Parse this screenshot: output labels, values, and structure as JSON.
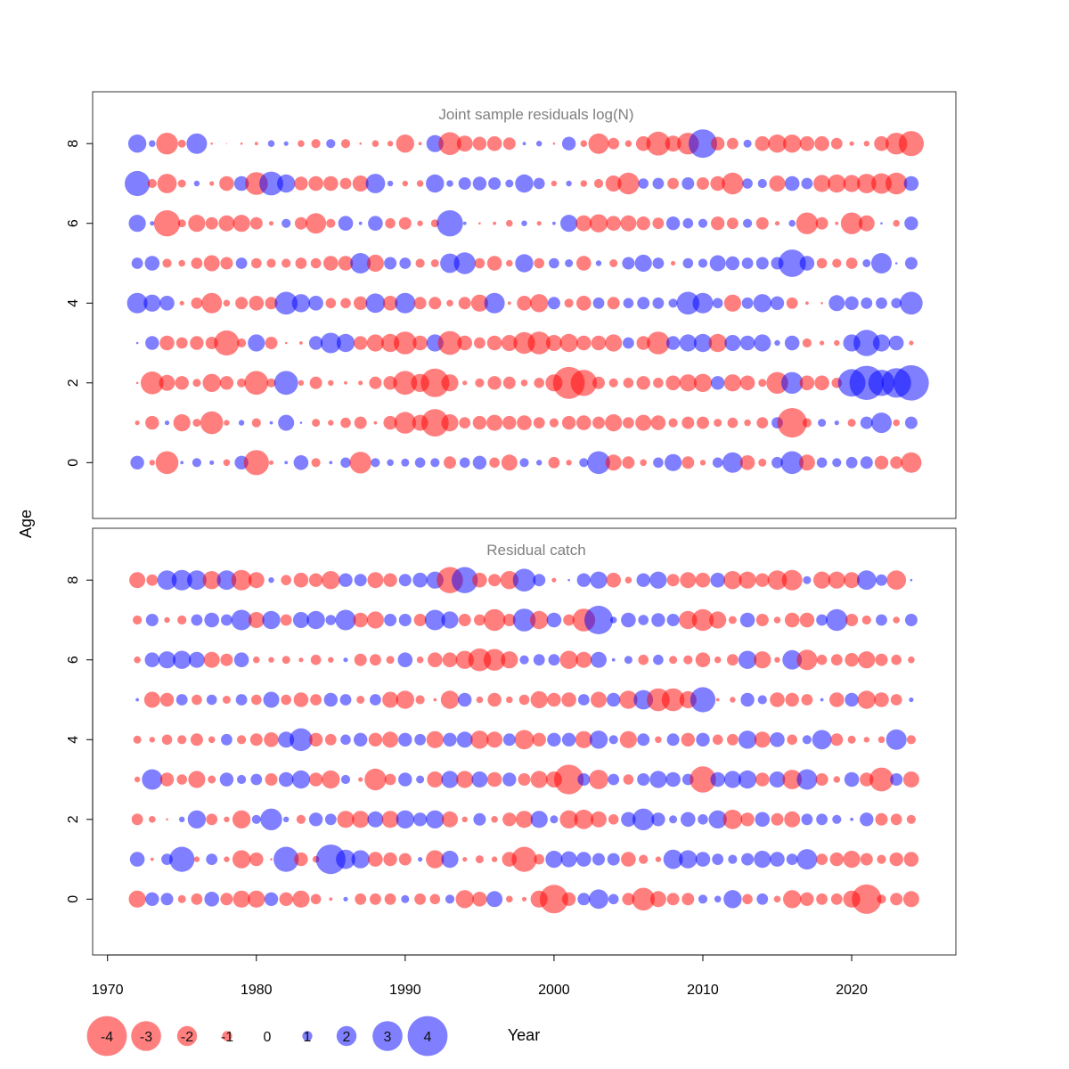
{
  "chart_data": {
    "type": "scatter",
    "subtype": "bubble",
    "xlabel": "Year",
    "ylabel": "Age",
    "xlim": [
      1969,
      2027
    ],
    "ylim": [
      -1.4,
      9.3
    ],
    "x_ticks": [
      1970,
      1980,
      1990,
      2000,
      2010,
      2020
    ],
    "y_ticks": [
      0,
      2,
      4,
      6,
      8
    ],
    "colors": {
      "negative": "#ff0000",
      "positive": "#0000ff",
      "opacity": 0.5
    },
    "years_start": 1972,
    "years_end": 2024,
    "legend": {
      "values": [
        -4,
        -3,
        -2,
        -1,
        0,
        1,
        2,
        3,
        4
      ],
      "labels": [
        "-4",
        "-3",
        "-2",
        "-1",
        "0",
        "1",
        "2",
        "3",
        "4"
      ]
    },
    "panels": [
      {
        "title": "Joint sample residuals log(N)",
        "ages": [
          0,
          1,
          2,
          3,
          4,
          5,
          6,
          7,
          8
        ],
        "residuals": [
          [
            1.2,
            -0.5,
            -2.0,
            0.3,
            0.8,
            0.4,
            -0.6,
            1.2,
            -2.2,
            -0.4,
            0.3,
            1.3,
            -0.8,
            0.3,
            0.9,
            -1.9,
            0.8,
            0.6,
            0.7,
            0.9,
            0.8,
            -1.1,
            0.9,
            1.2,
            -0.9,
            -1.4,
            0.8,
            0.5,
            -1.0,
            -0.5,
            0.8,
            2.0,
            -1.4,
            -1.1,
            -0.6,
            0.9,
            1.5,
            -1.1,
            -0.5,
            0.9,
            1.8,
            -1.3,
            -0.7,
            1.0,
            2.0,
            -1.4,
            0.9,
            0.8,
            1.0,
            1.1,
            -1.2,
            -1.1,
            -1.8
          ],
          [
            -0.4,
            -1.2,
            0.4,
            -1.5,
            -0.7,
            -2.0,
            -0.5,
            0.5,
            -0.8,
            0.3,
            1.4,
            0.2,
            -0.7,
            -0.5,
            -0.9,
            -1.1,
            -0.3,
            -1.2,
            -1.9,
            -1.4,
            -2.4,
            -1.5,
            -1.0,
            -1.2,
            -1.4,
            -1.2,
            -1.3,
            -1.0,
            -0.8,
            -1.2,
            -1.3,
            -1.1,
            -1.5,
            -1.0,
            -1.4,
            -1.3,
            -0.8,
            -1.1,
            -1.1,
            -0.7,
            -0.9,
            -0.6,
            -1.0,
            1.0,
            -2.6,
            -0.8,
            0.7,
            0.4,
            -0.7,
            1.1,
            1.8,
            -0.6,
            1.1
          ],
          [
            -0.2,
            -2.0,
            -1.4,
            -1.2,
            -0.7,
            -1.6,
            -1.2,
            -0.8,
            -2.1,
            -0.8,
            2.1,
            -0.5,
            -1.1,
            -0.5,
            -0.3,
            -0.4,
            -1.1,
            -1.2,
            -2.1,
            -1.6,
            -2.5,
            -1.5,
            -0.4,
            -0.8,
            -1.2,
            -1.1,
            -0.6,
            -0.9,
            -1.5,
            -2.8,
            -2.3,
            -1.1,
            -0.8,
            -0.9,
            -1.2,
            -0.9,
            -1.3,
            -1.5,
            -1.6,
            1.2,
            -1.5,
            -1.3,
            -0.7,
            -1.9,
            1.9,
            -1.3,
            -1.3,
            -0.9,
            2.4,
            3.0,
            2.3,
            2.6,
            3.1
          ],
          [
            0.2,
            1.2,
            -1.3,
            -1.0,
            -1.2,
            -1.1,
            -2.2,
            -0.8,
            1.5,
            -1.1,
            -0.2,
            -0.3,
            1.2,
            1.8,
            1.6,
            -1.2,
            -1.5,
            -1.6,
            -2.0,
            -1.3,
            1.5,
            -2.1,
            -1.3,
            -1.0,
            -1.3,
            -1.4,
            -1.9,
            -2.0,
            -1.4,
            -1.6,
            -1.3,
            -1.3,
            -1.5,
            1.0,
            -1.2,
            -2.0,
            1.2,
            1.5,
            1.6,
            -1.6,
            1.4,
            1.3,
            1.5,
            0.5,
            1.3,
            -0.8,
            -0.4,
            -0.5,
            1.5,
            2.3,
            1.5,
            1.3,
            -0.4
          ],
          [
            1.8,
            1.5,
            1.3,
            -0.4,
            -1.0,
            -1.8,
            -0.6,
            -1.1,
            -1.3,
            -1.1,
            2.0,
            1.6,
            1.3,
            -0.9,
            -0.9,
            -1.2,
            1.7,
            -1.3,
            1.8,
            -1.1,
            -1.1,
            -0.6,
            -1.1,
            -1.5,
            1.8,
            -0.3,
            -1.3,
            -1.6,
            1.1,
            -0.8,
            -1.3,
            1.0,
            -1.1,
            0.9,
            1.1,
            1.0,
            0.8,
            2.0,
            1.8,
            0.9,
            -1.5,
            1.0,
            1.6,
            1.2,
            -1.0,
            -0.3,
            -0.2,
            1.4,
            1.2,
            1.0,
            1.0,
            0.9,
            2.0
          ],
          [
            1.0,
            1.3,
            -0.8,
            -0.6,
            -1.0,
            -1.4,
            -1.1,
            1.0,
            -0.9,
            -0.8,
            -0.8,
            -1.0,
            -0.9,
            -1.3,
            -1.3,
            1.8,
            -1.5,
            1.1,
            1.0,
            -0.8,
            -0.7,
            1.7,
            1.9,
            -0.9,
            -1.3,
            -0.6,
            1.6,
            -0.9,
            0.9,
            0.7,
            -1.3,
            0.5,
            -0.7,
            1.1,
            1.5,
            1.0,
            -0.4,
            0.9,
            0.8,
            1.4,
            1.2,
            1.0,
            1.1,
            1.1,
            2.4,
            1.3,
            -0.9,
            -0.8,
            -1.0,
            0.7,
            1.8,
            0.2,
            1.1
          ],
          [
            1.5,
            0.4,
            -2.3,
            -0.7,
            -1.5,
            -1.1,
            -1.4,
            -1.5,
            -1.1,
            -0.4,
            0.8,
            -1.1,
            -1.8,
            -0.8,
            1.3,
            0.3,
            1.3,
            -0.9,
            -1.1,
            -0.5,
            -0.7,
            2.3,
            0.3,
            -0.2,
            -0.3,
            -0.6,
            0.5,
            -0.4,
            0.3,
            1.5,
            -1.4,
            -1.6,
            -1.3,
            -1.4,
            -1.2,
            -1.0,
            1.2,
            0.9,
            0.8,
            -1.2,
            -1.0,
            0.8,
            -1.1,
            -0.4,
            0.6,
            -1.9,
            -1.1,
            -0.3,
            -1.9,
            -1.4,
            0.2,
            -0.6,
            1.2
          ],
          [
            2.2,
            -0.8,
            -1.7,
            -0.7,
            0.5,
            -0.4,
            -1.3,
            1.3,
            -2.0,
            2.1,
            1.6,
            -1.2,
            -1.3,
            -1.3,
            -1.0,
            -1.4,
            1.7,
            0.5,
            -0.5,
            -0.6,
            1.6,
            0.6,
            1.1,
            1.2,
            1.1,
            0.7,
            1.6,
            1.0,
            -0.5,
            0.5,
            -0.6,
            -0.8,
            -1.4,
            -1.9,
            0.9,
            1.0,
            -1.0,
            1.1,
            -1.1,
            -1.3,
            -1.9,
            0.9,
            0.8,
            -1.4,
            1.3,
            1.0,
            -1.5,
            -1.6,
            -1.5,
            -1.7,
            -1.8,
            -1.9,
            1.3
          ],
          [
            1.6,
            0.6,
            -1.9,
            -0.7,
            1.8,
            -0.2,
            -0.1,
            -0.2,
            -0.3,
            0.6,
            0.4,
            -0.6,
            -0.8,
            0.8,
            -0.8,
            -0.2,
            -0.6,
            -0.5,
            -1.6,
            -0.3,
            1.5,
            -2.0,
            -1.4,
            -1.2,
            -1.3,
            -1.1,
            0.3,
            0.5,
            -0.2,
            1.2,
            -0.6,
            -1.8,
            -1.0,
            -0.6,
            -1.3,
            -2.1,
            -1.4,
            -1.9,
            2.5,
            -1.2,
            -1.0,
            0.7,
            -1.3,
            -1.6,
            -1.6,
            -1.3,
            -1.3,
            -1.0,
            -0.4,
            -0.5,
            -1.3,
            -1.9,
            -2.2
          ]
        ]
      },
      {
        "title": "Residual catch",
        "ages": [
          0,
          1,
          2,
          3,
          4,
          5,
          6,
          7,
          8
        ],
        "residuals": [
          [
            -1.5,
            1.2,
            1.1,
            -0.7,
            -1.0,
            1.3,
            -1.1,
            -1.5,
            -1.5,
            1.2,
            -1.2,
            -1.5,
            -0.9,
            -0.3,
            0.4,
            -1.0,
            -1.0,
            -1.0,
            0.7,
            -1.0,
            -0.9,
            0.8,
            -1.6,
            -1.3,
            1.4,
            -0.6,
            -0.4,
            -1.5,
            -2.5,
            -1.2,
            1.1,
            1.7,
            0.9,
            -1.1,
            -2.0,
            -1.4,
            -1.1,
            -1.1,
            0.8,
            0.6,
            1.6,
            -0.9,
            1.0,
            -0.6,
            -1.6,
            -1.2,
            -1.0,
            -1.0,
            -1.5,
            -2.6,
            -0.8,
            -1.1,
            -1.4
          ],
          [
            1.3,
            -0.3,
            1.0,
            2.2,
            -0.5,
            1.0,
            -0.5,
            -1.6,
            -1.2,
            -0.2,
            2.2,
            -1.2,
            -0.6,
            2.6,
            1.7,
            1.6,
            -1.3,
            -1.2,
            -1.1,
            0.4,
            -1.6,
            1.5,
            -0.4,
            -0.7,
            -0.5,
            -1.3,
            -2.2,
            -0.9,
            1.5,
            1.4,
            1.3,
            1.1,
            1.1,
            -1.3,
            -0.8,
            -0.5,
            1.7,
            1.6,
            1.3,
            1.0,
            0.8,
            1.1,
            1.5,
            1.3,
            1.0,
            1.8,
            -1.0,
            -1.2,
            -1.5,
            -1.1,
            -0.8,
            -1.2,
            -1.3
          ],
          [
            -1.0,
            -0.6,
            -0.2,
            0.5,
            1.6,
            -1.0,
            -0.5,
            -1.6,
            0.8,
            1.9,
            0.5,
            -0.8,
            1.2,
            1.0,
            -1.5,
            -1.5,
            1.4,
            -1.5,
            1.6,
            1.2,
            1.6,
            -1.4,
            -0.5,
            1.1,
            -0.6,
            -1.2,
            -1.5,
            1.5,
            0.7,
            -1.6,
            -1.7,
            -1.4,
            -0.9,
            1.3,
            1.9,
            1.2,
            0.7,
            1.3,
            0.9,
            1.6,
            -1.7,
            -1.2,
            1.3,
            -1.1,
            -1.4,
            1.0,
            1.0,
            0.8,
            0.3,
            1.2,
            -1.1,
            -1.0,
            -0.8
          ],
          [
            -0.5,
            1.8,
            -1.2,
            -0.9,
            -1.5,
            -0.7,
            1.2,
            0.8,
            1.0,
            -1.1,
            1.3,
            1.6,
            -1.2,
            -1.6,
            0.8,
            -0.4,
            -1.9,
            -1.0,
            1.2,
            0.7,
            -1.4,
            1.5,
            -1.5,
            1.4,
            -1.3,
            1.2,
            -1.1,
            -1.5,
            -1.4,
            -2.6,
            1.1,
            -1.7,
            1.0,
            -0.9,
            1.1,
            1.5,
            1.3,
            1.0,
            -2.3,
            1.3,
            1.5,
            1.6,
            -1.2,
            1.4,
            -1.7,
            1.8,
            -1.1,
            -0.6,
            1.3,
            -1.2,
            -2.1,
            1.1,
            -1.4
          ],
          [
            -0.7,
            -0.5,
            -0.9,
            -0.8,
            -1.1,
            -0.6,
            1.0,
            -0.8,
            -1.1,
            -1.3,
            1.4,
            2.0,
            -1.2,
            -1.0,
            0.9,
            1.2,
            -1.2,
            -1.4,
            1.2,
            1.0,
            -1.5,
            1.2,
            1.4,
            -1.6,
            -1.4,
            1.1,
            -1.7,
            -1.2,
            1.2,
            1.2,
            -1.5,
            1.6,
            0.8,
            -1.5,
            1.1,
            -0.6,
            1.1,
            -1.2,
            1.2,
            -0.9,
            -1.0,
            1.6,
            -1.4,
            1.3,
            -0.9,
            0.8,
            1.7,
            -1.1,
            -0.7,
            -0.5,
            -0.6,
            1.8,
            -0.8
          ],
          [
            0.3,
            -1.4,
            -1.2,
            1.0,
            -0.9,
            0.9,
            -0.7,
            1.0,
            -0.9,
            1.4,
            -0.9,
            -1.3,
            -1.0,
            1.2,
            1.0,
            -0.7,
            1.0,
            -1.4,
            -1.6,
            -0.8,
            -0.3,
            -1.6,
            1.2,
            -0.6,
            -1.2,
            -0.6,
            -0.9,
            -1.5,
            -1.2,
            -1.3,
            1.0,
            -1.4,
            1.2,
            -1.6,
            1.7,
            -2.0,
            -2.0,
            -1.5,
            2.2,
            -0.3,
            -0.5,
            1.2,
            0.8,
            -1.3,
            -1.2,
            -1.0,
            0.3,
            -1.3,
            1.2,
            -1.6,
            -1.3,
            -1.0,
            0.4
          ],
          [
            -0.6,
            1.3,
            1.5,
            1.6,
            1.4,
            -1.4,
            -1.1,
            1.3,
            -0.6,
            -0.5,
            -0.7,
            -0.4,
            -0.9,
            -0.5,
            0.4,
            -1.1,
            -1.0,
            -0.7,
            1.3,
            -0.6,
            -1.3,
            -1.3,
            -1.6,
            -2.0,
            -1.9,
            -1.5,
            0.8,
            1.0,
            1.0,
            -1.6,
            -1.4,
            1.4,
            0.3,
            0.7,
            -0.9,
            0.9,
            -0.7,
            -0.8,
            -1.3,
            -0.6,
            -1.0,
            1.6,
            -1.5,
            -0.5,
            1.7,
            -1.8,
            -0.9,
            -1.0,
            -1.2,
            -1.5,
            -1.1,
            -0.9,
            -0.6
          ],
          [
            -0.8,
            1.1,
            -0.5,
            -0.8,
            1.0,
            1.3,
            1.0,
            1.8,
            -1.4,
            1.6,
            -1.0,
            1.4,
            1.6,
            0.9,
            1.8,
            -1.3,
            -1.5,
            1.1,
            1.1,
            -1.1,
            1.8,
            1.5,
            -1.1,
            -1.0,
            -1.9,
            -1.1,
            2.0,
            -1.6,
            1.3,
            -1.0,
            -2.0,
            2.5,
            0.6,
            1.3,
            0.9,
            1.2,
            1.1,
            -1.6,
            -1.9,
            -1.5,
            -0.7,
            1.3,
            -1.1,
            -0.6,
            -1.3,
            -1.3,
            1.0,
            1.9,
            -1.1,
            -0.8,
            1.0,
            -0.6,
            1.1
          ],
          [
            -1.4,
            -1.0,
            1.7,
            1.8,
            1.7,
            -1.6,
            1.7,
            -1.8,
            -1.4,
            0.5,
            -0.9,
            -1.3,
            -1.2,
            -1.6,
            1.2,
            1.1,
            -1.4,
            -1.2,
            1.1,
            1.3,
            1.5,
            -2.3,
            2.3,
            -1.3,
            -1.1,
            -1.6,
            2.0,
            1.1,
            -0.4,
            0.2,
            1.2,
            1.5,
            -1.3,
            -0.6,
            1.2,
            1.5,
            -1.1,
            -1.4,
            -1.3,
            1.3,
            -1.6,
            -1.5,
            -1.2,
            -1.7,
            -1.8,
            0.7,
            -1.5,
            -1.5,
            -1.4,
            1.7,
            1.0,
            -1.7,
            0.2
          ]
        ]
      }
    ]
  }
}
